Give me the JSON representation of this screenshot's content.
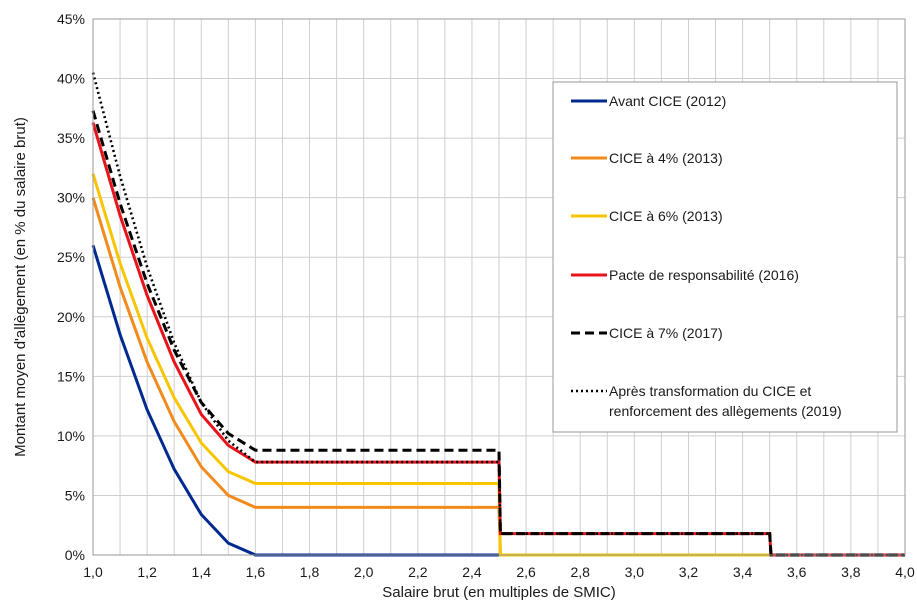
{
  "chart_data": {
    "type": "line",
    "xlabel": "Salaire brut (en multiples de SMIC)",
    "ylabel": "Montant moyen d'allègement (en % du salaire brut)",
    "xlim": [
      1.0,
      4.0
    ],
    "ylim": [
      0,
      45
    ],
    "x_ticks": [
      "1,0",
      "1,2",
      "1,4",
      "1,6",
      "1,8",
      "2,0",
      "2,2",
      "2,4",
      "2,6",
      "2,8",
      "3,0",
      "3,2",
      "3,4",
      "3,6",
      "3,8",
      "4,0"
    ],
    "y_ticks": [
      "0%",
      "5%",
      "10%",
      "15%",
      "20%",
      "25%",
      "30%",
      "35%",
      "40%",
      "45%"
    ],
    "grid": true,
    "legend_position": "right",
    "series": [
      {
        "name": "Avant CICE (2012)",
        "color": "#002a8f",
        "style": "solid",
        "points": [
          [
            1.0,
            26.0
          ],
          [
            1.1,
            18.5
          ],
          [
            1.2,
            12.2
          ],
          [
            1.3,
            7.2
          ],
          [
            1.4,
            3.4
          ],
          [
            1.5,
            1.0
          ],
          [
            1.6,
            0.0
          ],
          [
            4.0,
            0.0
          ]
        ]
      },
      {
        "name": "CICE à 4% (2013)",
        "color": "#f28a1c",
        "style": "solid",
        "points": [
          [
            1.0,
            30.0
          ],
          [
            1.1,
            22.5
          ],
          [
            1.2,
            16.2
          ],
          [
            1.3,
            11.2
          ],
          [
            1.4,
            7.4
          ],
          [
            1.5,
            5.0
          ],
          [
            1.6,
            4.0
          ],
          [
            2.5,
            4.0
          ],
          [
            2.505,
            0.0
          ],
          [
            4.0,
            0.0
          ]
        ]
      },
      {
        "name": "CICE à 6% (2013)",
        "color": "#f7c600",
        "style": "solid",
        "points": [
          [
            1.0,
            32.0
          ],
          [
            1.1,
            24.5
          ],
          [
            1.2,
            18.2
          ],
          [
            1.3,
            13.2
          ],
          [
            1.4,
            9.4
          ],
          [
            1.5,
            7.0
          ],
          [
            1.6,
            6.0
          ],
          [
            2.5,
            6.0
          ],
          [
            2.505,
            0.0
          ],
          [
            4.0,
            0.0
          ]
        ]
      },
      {
        "name": "Pacte de responsabilité (2016)",
        "color": "#e8141b",
        "style": "solid",
        "points": [
          [
            1.0,
            36.3
          ],
          [
            1.1,
            28.5
          ],
          [
            1.2,
            21.8
          ],
          [
            1.3,
            16.2
          ],
          [
            1.4,
            11.8
          ],
          [
            1.5,
            9.2
          ],
          [
            1.6,
            7.8
          ],
          [
            2.5,
            7.8
          ],
          [
            2.505,
            1.8
          ],
          [
            3.5,
            1.8
          ],
          [
            3.505,
            0.0
          ],
          [
            4.0,
            0.0
          ]
        ]
      },
      {
        "name": "CICE à 7% (2017)",
        "color": "#000000",
        "style": "dash",
        "points": [
          [
            1.0,
            37.3
          ],
          [
            1.1,
            29.5
          ],
          [
            1.2,
            22.8
          ],
          [
            1.3,
            17.2
          ],
          [
            1.4,
            12.8
          ],
          [
            1.5,
            10.2
          ],
          [
            1.6,
            8.8
          ],
          [
            2.5,
            8.8
          ],
          [
            2.505,
            1.8
          ],
          [
            3.5,
            1.8
          ],
          [
            3.505,
            0.0
          ],
          [
            4.0,
            0.0
          ]
        ]
      },
      {
        "name": "Après transformation du CICE et renforcement des allègements (2019)",
        "legend_lines": [
          "Après transformation du CICE et",
          "renforcement des allègements (2019)"
        ],
        "color": "#000000",
        "style": "dot",
        "points": [
          [
            1.0,
            40.5
          ],
          [
            1.1,
            31.8
          ],
          [
            1.2,
            24.2
          ],
          [
            1.3,
            17.8
          ],
          [
            1.4,
            12.8
          ],
          [
            1.5,
            9.6
          ],
          [
            1.6,
            7.8
          ],
          [
            2.5,
            7.8
          ],
          [
            2.505,
            1.8
          ],
          [
            3.5,
            1.8
          ],
          [
            3.505,
            0.0
          ],
          [
            4.0,
            0.0
          ]
        ]
      }
    ]
  }
}
